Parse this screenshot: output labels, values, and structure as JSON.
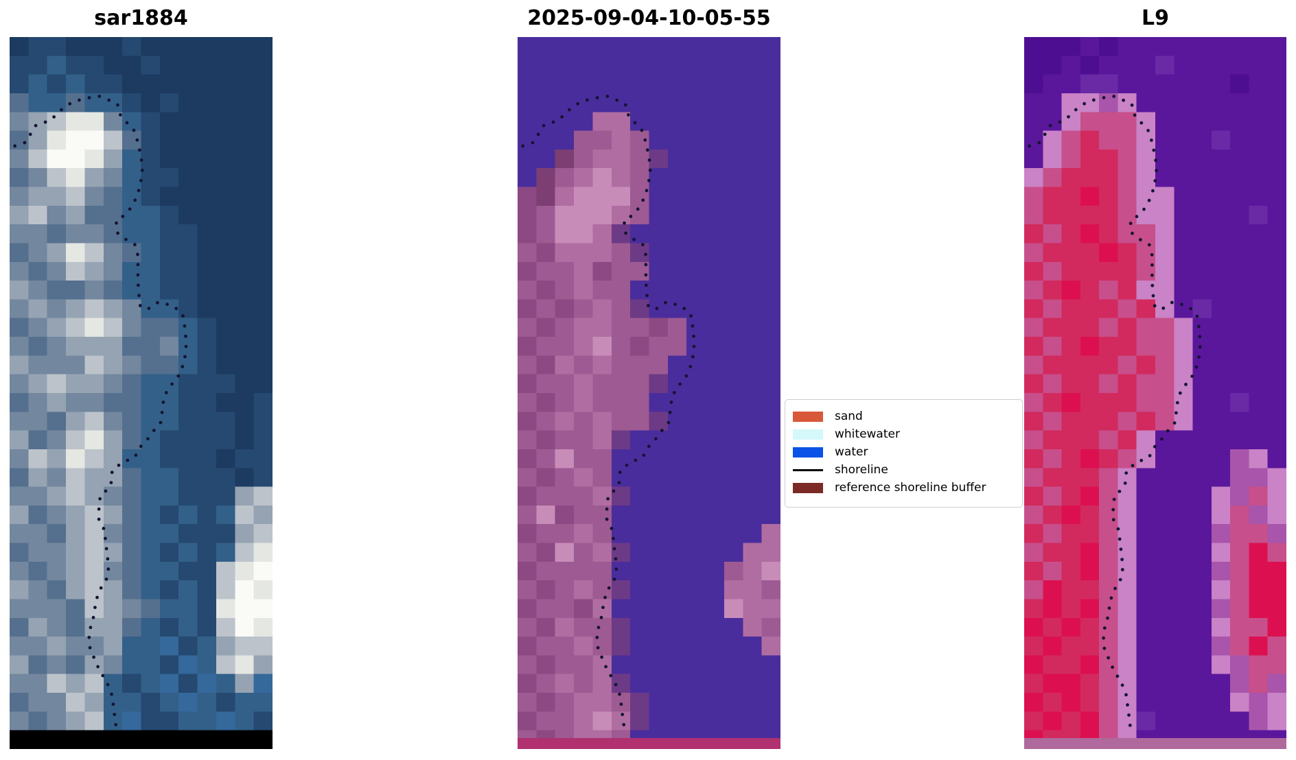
{
  "chart_data": {
    "type": "image-panels",
    "description": "Three coregistered coastal satellite image tiles with pixel-block imagery, a dotted detected shoreline overlay, and a land/water classification legend",
    "panels": [
      {
        "title": "sar1884",
        "bottom_strip_color": "#000000",
        "palette": {
          "a": "#1d3a60",
          "b": "#254970",
          "c": "#336089",
          "d": "#55708e",
          "e": "#73879f",
          "f": "#95a3b3",
          "g": "#bcc3ca",
          "h": "#e5e7e3",
          "i": "#fafaf7",
          "j": "#35689b",
          "k": "#000000"
        },
        "bitmap": [
          "abbaaabaaaaaaa",
          "bbcbbaabaaaaaa",
          "bcbcbbaaaaaaaa",
          "dccdccbabaaaaa",
          "efghhecbaaaaaa",
          "dfhiigdbaaaaaa",
          "egiihfcbaaaaaa",
          "deghfecbbaaaaa",
          "effgedcbaaaaaa",
          "fgefddccbaaaaa",
          "eedeedccbbaaaa",
          "defhgedcbbaaaa",
          "edegfeccbbaaaa",
          "feddedccbbaaaa",
          "efefgfeccbaaaa",
          "defghgeddcbaaa",
          "edefffddecbaaa",
          "feeegfeddcbaaa",
          "efgffedccbbbaa",
          "defeeddccbbaab",
          "eedfgedccbbbab",
          "fdeghfdcbbbbab",
          "egfhgfccbbbabb",
          "dfegffdccbbbab",
          "eefgfedccbbbfg",
          "fdefgfdcbcbcgf",
          "eedfgedccbbbfg",
          "deefgfdcbcbcgh",
          "edefgedccbbghi",
          "fedfgfdcbcbgih",
          "eeedgfedccbhii",
          "dfedffdcbcbgih",
          "eefeefccjbcfgg",
          "fdedfeccbjcghf",
          "eegfgcbcjbjcfj",
          "deegfccbcjcbcc",
          "edefgcjbbccjcb",
          "kkkkkkkkkkkkkk"
        ]
      },
      {
        "title": "2025-09-04-10-05-55",
        "bottom_strip_color": "#b03070",
        "palette": {
          "W": "#4a2d9c",
          "r": "#7c3e73",
          "m": "#8d4983",
          "n": "#9e5a92",
          "p": "#b06da2",
          "q": "#c88cb8",
          "t": "#6d3a86"
        },
        "bitmap": [
          "WWWWWWWWWWWWWW",
          "WWWWWWWWWWWWWW",
          "WWWWWWWWWWWWWW",
          "WWWWWWWWWWWWWW",
          "WWWWppWWWWWWWW",
          "WWWnnpnWWWWWWW",
          "WWrnppntWWWWWW",
          "WrnpqpnWWWWWWW",
          "mrpqqqnWWWWWWW",
          "mnqqqpnWWWWWWW",
          "mnqqptWWWWWWWW",
          "nmpppntWWWWWWW",
          "mnnpmnnWWWWWWW",
          "nmnpnnWWWWWWWW",
          "mnmnpntWWWWWWW",
          "nmnppnnmnWWWWW",
          "mnnpqnmnnWWWWW",
          "nmpnpnnnWWWWWW",
          "mnnpnnntWWWWWW",
          "nmnpnnnWWWWWWW",
          "mnpnpnntWWWWWW",
          "nmnnptWWWWWWWW",
          "mnqnnWWWWWWWWW",
          "nmnpnWWWWWWWWW",
          "mnnnptWWWWWWWW",
          "nqmnnWWWWWWWWW",
          "mnnpnWWWWWWWWp",
          "nmqnptWWWWWWpp",
          "mnnnnWWWWWWnpq",
          "nmnpntWWWWWppn",
          "mnnmpWWWWWWqpp",
          "nmpnntWWWWWWpn",
          "mnnpntWWWWWWWp",
          "nmnnpWWWWWWWWW",
          "mnpnptWWWWWWWW",
          "nmnppntWWWWWWW",
          "mnnpqptWWWWWWW",
          "nmnppnWWWWWWWW"
        ]
      },
      {
        "title": "L9",
        "bottom_strip_color": "#b0699c",
        "palette": {
          "U": "#5a179b",
          "V": "#4d0e91",
          "X": "#6a2aa6",
          "A": "#d22a5e",
          "B": "#dc1050",
          "C": "#c74f8b",
          "D": "#c983c6",
          "E": "#a855ab"
        },
        "bitmap": [
          "VVVUVUUUUUUUUU",
          "VVUVUUUXUUUUUU",
          "VUUXXUUUUUUVUU",
          "UUDDEDUUUUUUUU",
          "UUDCCCDUUUUUUU",
          "UDCACCDUUUXUUU",
          "UDCAACDUUUUUUU",
          "DCAAACDUUUUUUU",
          "CAABACDDUUUUUU",
          "CAAAACDDUUUUXU",
          "ACABACCDUUUUUU",
          "CAAABACDUUUUUU",
          "ACAAAACDUUUUUU",
          "CABACADDUUUUUU",
          "ACAAACADUXUUUU",
          "CAAACACCDUUUUU",
          "ACABAACCDUUUUU",
          "CAAAACACDUUUUU",
          "ACAACACCDUUUUU",
          "CABAAACCDUUXUU",
          "ACAAACACDUUUUU",
          "CAAACADUUUUUUU",
          "ACABACDUUUUEDU",
          "CAAACDUUUUUEED",
          "ACABCDUUUUDECD",
          "CABACDUUUUDCED",
          "ACAACDUUUUECCE",
          "CAABCDUUUUDCBC",
          "ACABCDUUUUECBB",
          "CBAACDUUUUDCBB",
          "ABABCDUUUUECBB",
          "BABACDUUUUDCCB",
          "ABAACDUUUUECBC",
          "BAABCDUUUUDECC",
          "ABBACDUUUUUECE",
          "BABACDUUUUUDED",
          "ABABCDXUUUUUED",
          "BAABCDUUUUUUUU"
        ]
      }
    ],
    "shoreline": {
      "color": "#141432",
      "dot_radius_px": 2.4,
      "dot_spacing_px": 15,
      "points_normalized": [
        [
          0.02,
          0.153
        ],
        [
          0.06,
          0.148
        ],
        [
          0.1,
          0.124
        ],
        [
          0.155,
          0.117
        ],
        [
          0.2,
          0.101
        ],
        [
          0.24,
          0.091
        ],
        [
          0.29,
          0.086
        ],
        [
          0.34,
          0.083
        ],
        [
          0.38,
          0.089
        ],
        [
          0.41,
          0.094
        ],
        [
          0.422,
          0.11
        ],
        [
          0.44,
          0.118
        ],
        [
          0.47,
          0.129
        ],
        [
          0.48,
          0.137
        ],
        [
          0.49,
          0.152
        ],
        [
          0.5,
          0.168
        ],
        [
          0.505,
          0.185
        ],
        [
          0.5,
          0.201
        ],
        [
          0.49,
          0.217
        ],
        [
          0.475,
          0.231
        ],
        [
          0.455,
          0.243
        ],
        [
          0.43,
          0.252
        ],
        [
          0.405,
          0.258
        ],
        [
          0.41,
          0.275
        ],
        [
          0.445,
          0.285
        ],
        [
          0.478,
          0.292
        ],
        [
          0.488,
          0.307
        ],
        [
          0.488,
          0.326
        ],
        [
          0.488,
          0.343
        ],
        [
          0.491,
          0.359
        ],
        [
          0.496,
          0.377
        ],
        [
          0.522,
          0.383
        ],
        [
          0.567,
          0.372
        ],
        [
          0.593,
          0.375
        ],
        [
          0.621,
          0.377
        ],
        [
          0.658,
          0.389
        ],
        [
          0.666,
          0.407
        ],
        [
          0.671,
          0.425
        ],
        [
          0.671,
          0.442
        ],
        [
          0.661,
          0.459
        ],
        [
          0.648,
          0.473
        ],
        [
          0.608,
          0.492
        ],
        [
          0.587,
          0.505
        ],
        [
          0.582,
          0.522
        ],
        [
          0.574,
          0.542
        ],
        [
          0.548,
          0.553
        ],
        [
          0.522,
          0.566
        ],
        [
          0.494,
          0.577
        ],
        [
          0.475,
          0.591
        ],
        [
          0.43,
          0.597
        ],
        [
          0.39,
          0.609
        ],
        [
          0.387,
          0.625
        ],
        [
          0.377,
          0.634
        ],
        [
          0.345,
          0.644
        ],
        [
          0.34,
          0.66
        ],
        [
          0.338,
          0.676
        ],
        [
          0.36,
          0.692
        ],
        [
          0.366,
          0.71
        ],
        [
          0.371,
          0.727
        ],
        [
          0.377,
          0.744
        ],
        [
          0.369,
          0.761
        ],
        [
          0.353,
          0.77
        ],
        [
          0.338,
          0.781
        ],
        [
          0.327,
          0.794
        ],
        [
          0.322,
          0.811
        ],
        [
          0.309,
          0.828
        ],
        [
          0.301,
          0.837
        ],
        [
          0.306,
          0.859
        ],
        [
          0.34,
          0.888
        ],
        [
          0.371,
          0.907
        ],
        [
          0.392,
          0.927
        ],
        [
          0.395,
          0.943
        ],
        [
          0.403,
          0.961
        ],
        [
          0.405,
          0.972
        ]
      ]
    },
    "legend": {
      "items": [
        {
          "label": "sand",
          "color": "#d8583a",
          "kind": "patch"
        },
        {
          "label": "whitewater",
          "color": "#d5f8fa",
          "kind": "patch"
        },
        {
          "label": "water",
          "color": "#0b52e8",
          "kind": "patch"
        },
        {
          "label": "shoreline",
          "color": "#000000",
          "kind": "line"
        },
        {
          "label": "reference shoreline buffer",
          "color": "#7b2a26",
          "kind": "patch"
        }
      ]
    }
  }
}
